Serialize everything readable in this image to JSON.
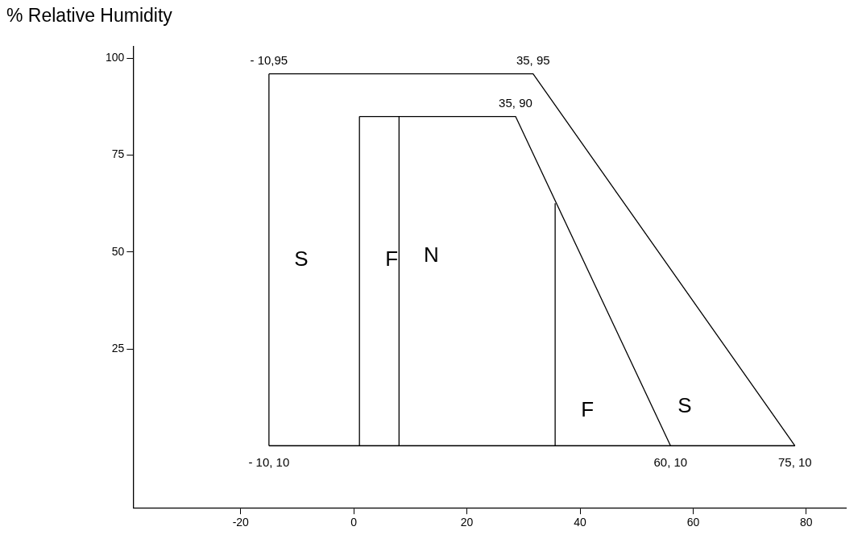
{
  "chart_data": {
    "type": "line",
    "ylabel": "% Relative Humidity",
    "series": [
      {
        "color": "#000000",
        "x": [
          -15,
          31.7,
          78
        ],
        "values": [
          96,
          96,
          0
        ]
      },
      {
        "color": "#000000",
        "x": [
          -15,
          78
        ],
        "values": [
          0,
          0
        ]
      },
      {
        "color": "#000000",
        "x": [
          -15,
          -15
        ],
        "values": [
          0,
          96
        ]
      },
      {
        "color": "#000000",
        "x": [
          1,
          28.6,
          56
        ],
        "values": [
          85,
          85,
          0
        ]
      },
      {
        "color": "#000000",
        "x": [
          1,
          1
        ],
        "values": [
          0,
          85
        ]
      },
      {
        "color": "#000000",
        "x": [
          8,
          8
        ],
        "values": [
          0,
          85
        ]
      },
      {
        "color": "#000000",
        "x": [
          35.6,
          35.6
        ],
        "values": [
          0,
          62.6
        ]
      }
    ],
    "xlim": [
      -39,
      87
    ],
    "ylim": [
      -16,
      103
    ],
    "xticks": [
      -20,
      0,
      20,
      40,
      60,
      80
    ],
    "yticks": [
      25,
      50,
      75,
      100
    ],
    "annotations": [
      {
        "text": "- 10,95",
        "x": -15,
        "y": 96
      },
      {
        "text": "35, 95",
        "x": 31.7,
        "y": 96
      },
      {
        "text": "35, 90",
        "x": 28.6,
        "y": 85
      },
      {
        "text": "- 10, 10",
        "x": -15,
        "y": 0
      },
      {
        "text": "60, 10",
        "x": 56,
        "y": 0
      },
      {
        "text": "75, 10",
        "x": 78,
        "y": 0
      },
      {
        "text": "S",
        "x": -15,
        "y": 48
      },
      {
        "text": "F",
        "x": 1,
        "y": 48
      },
      {
        "text": "N",
        "x": 8,
        "y": 49
      },
      {
        "text": "F",
        "x": 35.6,
        "y": 9
      },
      {
        "text": "S",
        "x": 52.8,
        "y": 10
      }
    ],
    "legend": false,
    "marker": "none",
    "line_style": "solid"
  }
}
